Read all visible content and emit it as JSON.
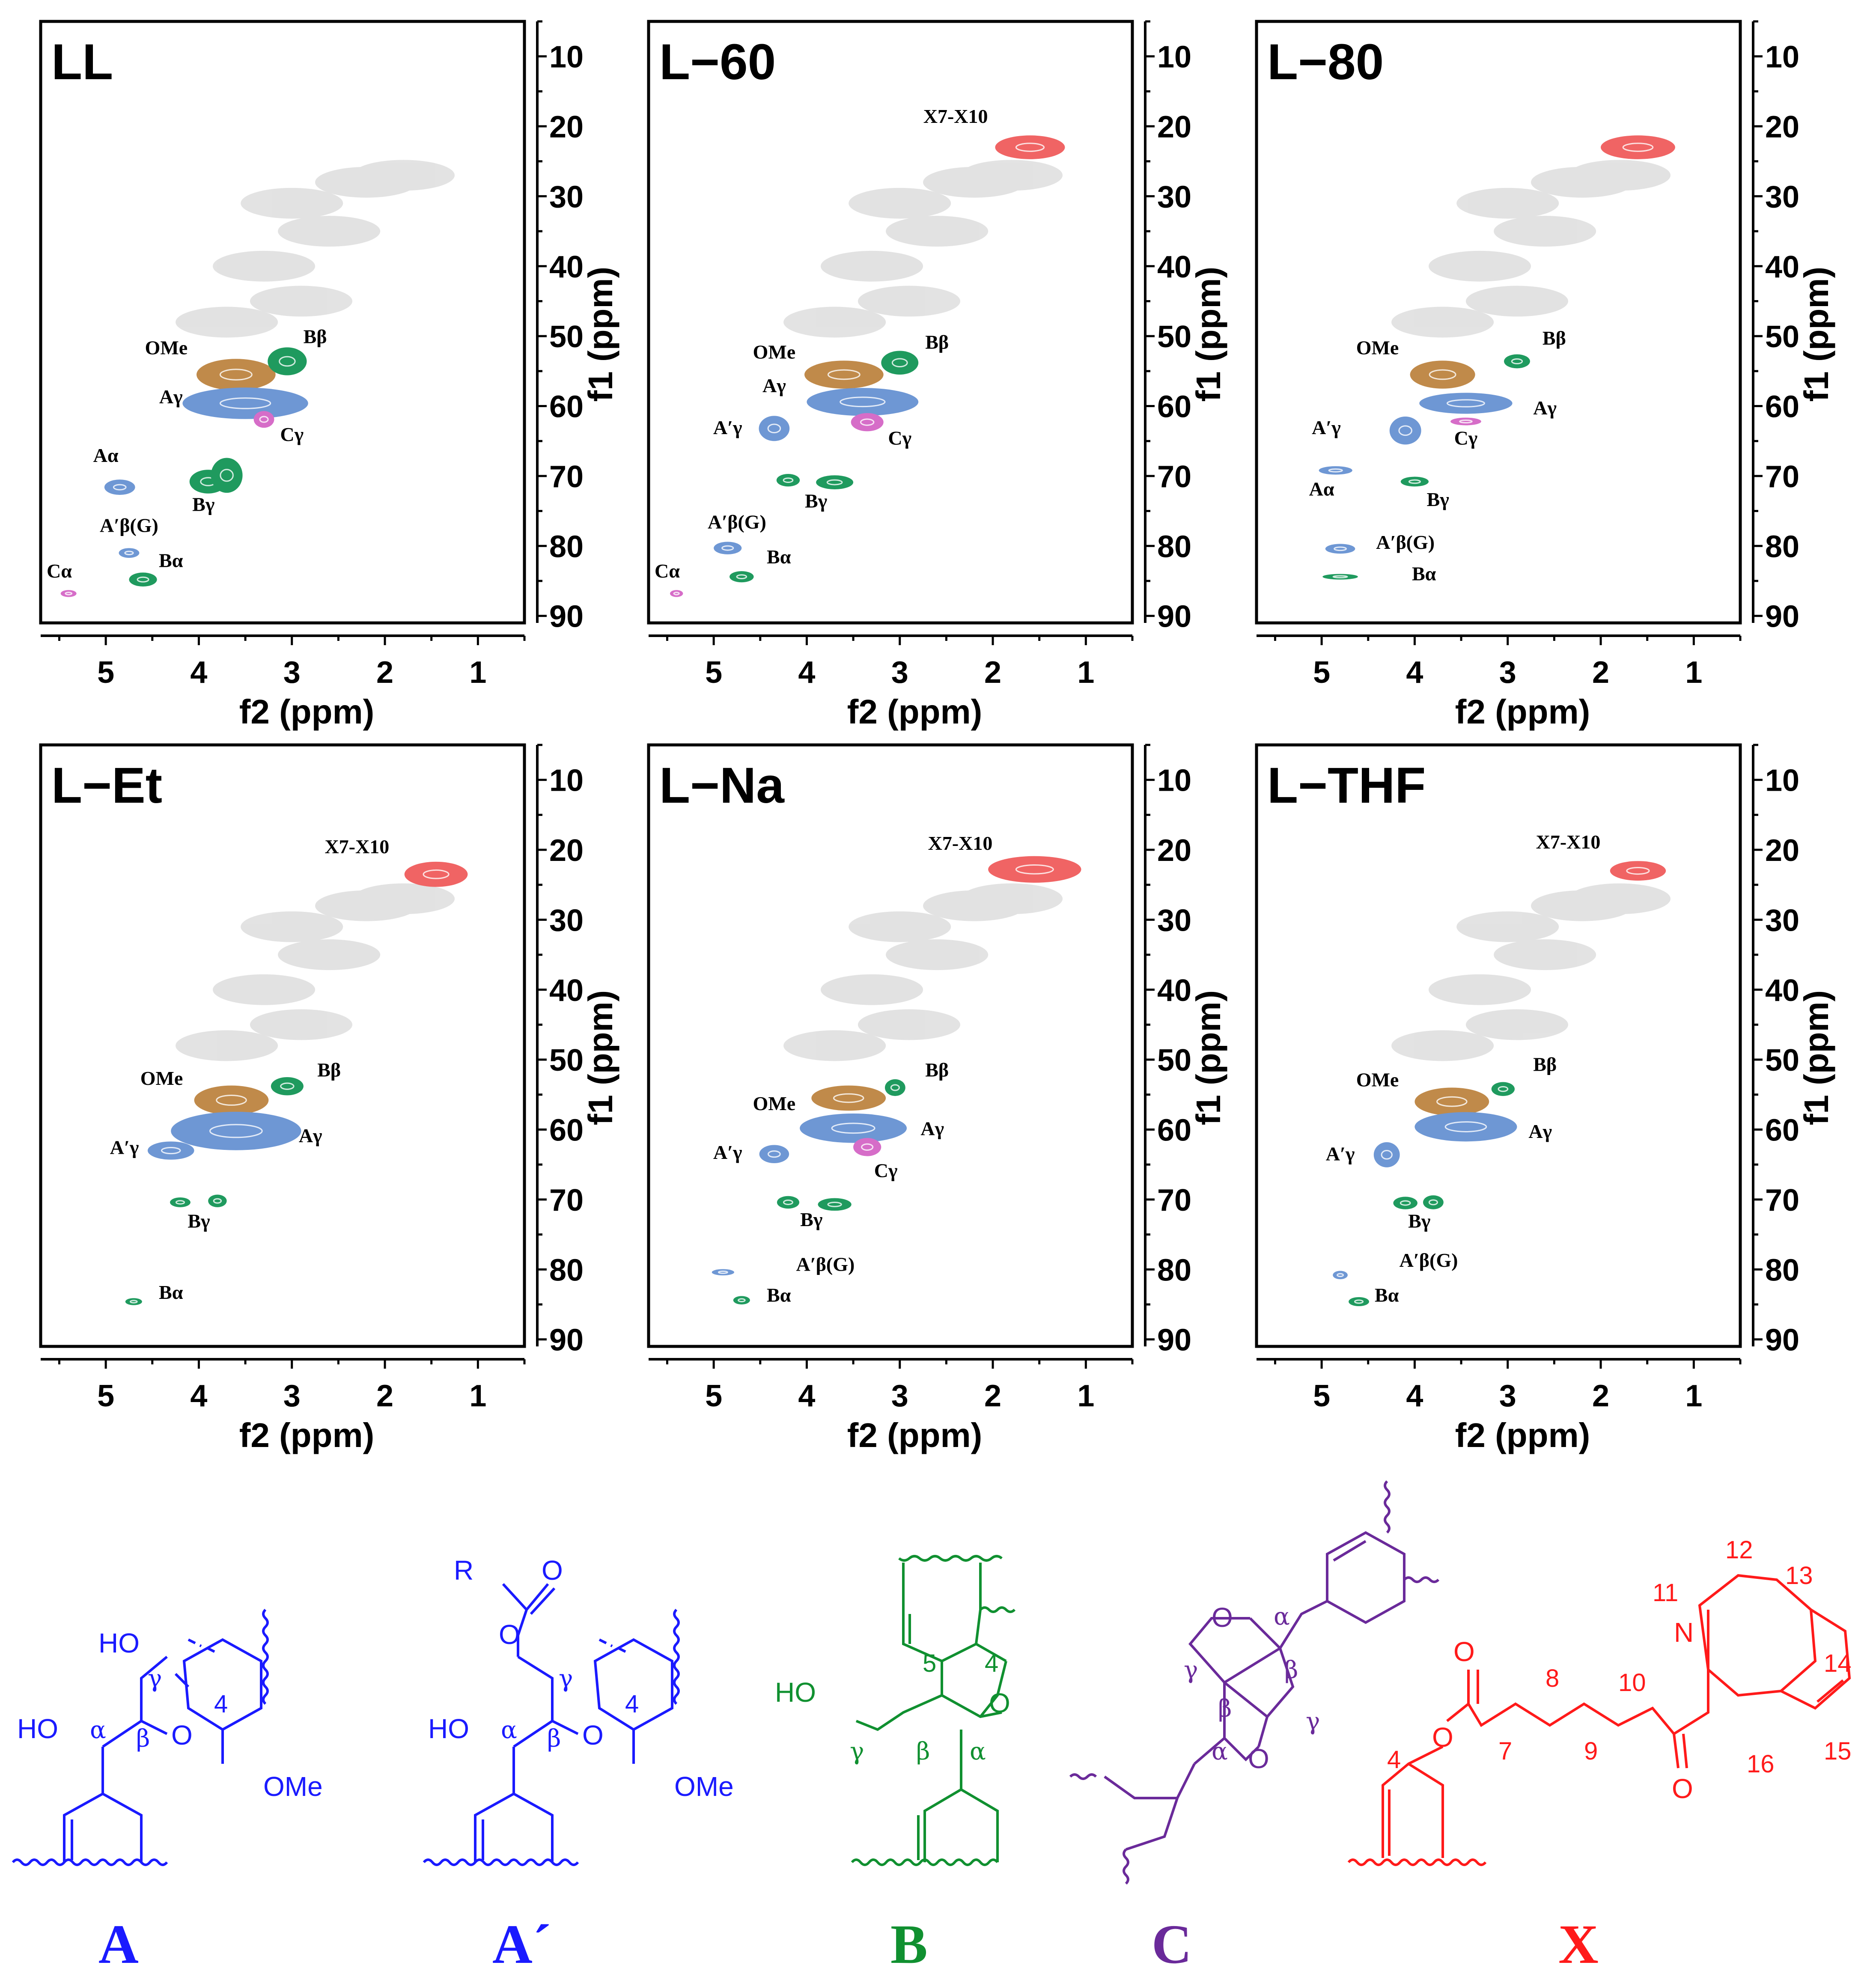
{
  "chart_data": {
    "type": "scatter",
    "description": "2D HSQC NMR spectra (side-chain region) of lignin samples",
    "x_axis": {
      "label": "f2 (ppm)",
      "ticks": [
        5,
        4,
        3,
        2,
        1
      ],
      "range": [
        5.7,
        0.5
      ]
    },
    "y_axis": {
      "label": "f1 (ppm)",
      "ticks": [
        10,
        20,
        30,
        40,
        50,
        60,
        70,
        80,
        90
      ],
      "range": [
        5,
        91
      ]
    },
    "panels": [
      {
        "title": "LL",
        "cross_peaks": [
          {
            "label": "OMe",
            "x": 3.6,
            "y": 55.5,
            "dx": 0.85,
            "dy": 4.5,
            "color": "#c08a4a"
          },
          {
            "label": "Bβ",
            "x": 3.05,
            "y": 53.6,
            "dx": 0.42,
            "dy": 4.0,
            "color": "#1f9a5e"
          },
          {
            "label": "Aγ",
            "x": 3.5,
            "y": 59.6,
            "dx": 1.35,
            "dy": 4.5,
            "color": "#6e97d4"
          },
          {
            "label": "Cγ",
            "x": 3.3,
            "y": 61.9,
            "dx": 0.22,
            "dy": 2.4,
            "color": "#d66dc8"
          },
          {
            "label": "Aα",
            "x": 4.85,
            "y": 71.6,
            "dx": 0.33,
            "dy": 2.2,
            "color": "#6e97d4"
          },
          {
            "label": "Bγ",
            "x": 3.9,
            "y": 70.8,
            "dx": 0.4,
            "dy": 3.4,
            "color": "#1f9a5e"
          },
          {
            "label": "Bγ",
            "x": 3.7,
            "y": 69.9,
            "dx": 0.34,
            "dy": 5.0,
            "color": "#1f9a5e"
          },
          {
            "label": "A′β(G)",
            "x": 4.75,
            "y": 81.0,
            "dx": 0.22,
            "dy": 1.4,
            "color": "#6e97d4"
          },
          {
            "label": "Bα",
            "x": 4.6,
            "y": 84.8,
            "dx": 0.3,
            "dy": 2.0,
            "color": "#1f9a5e"
          },
          {
            "label": "Cα",
            "x": 5.4,
            "y": 86.8,
            "dx": 0.17,
            "dy": 1.0,
            "color": "#d66dc8"
          }
        ],
        "labels": [
          {
            "text": "OMe",
            "x": 4.35,
            "y": 52.6
          },
          {
            "text": "Bβ",
            "x": 2.75,
            "y": 51.0
          },
          {
            "text": "Aγ",
            "x": 4.3,
            "y": 59.6
          },
          {
            "text": "Cγ",
            "x": 3.0,
            "y": 65.0
          },
          {
            "text": "Aα",
            "x": 5.0,
            "y": 68.0
          },
          {
            "text": "Bγ",
            "x": 3.95,
            "y": 75.0
          },
          {
            "text": "A′β(G)",
            "x": 4.75,
            "y": 78.0
          },
          {
            "text": "Bα",
            "x": 4.3,
            "y": 83.0
          },
          {
            "text": "Cα",
            "x": 5.5,
            "y": 84.5
          }
        ]
      },
      {
        "title": "L−60",
        "cross_peaks": [
          {
            "label": "X7-X10",
            "x": 1.6,
            "y": 23.0,
            "dx": 0.75,
            "dy": 3.4,
            "color": "#f06464"
          },
          {
            "label": "OMe",
            "x": 3.6,
            "y": 55.5,
            "dx": 0.85,
            "dy": 4.0,
            "color": "#c08a4a"
          },
          {
            "label": "Bβ",
            "x": 3.0,
            "y": 53.8,
            "dx": 0.4,
            "dy": 3.4,
            "color": "#1f9a5e"
          },
          {
            "label": "Aγ",
            "x": 3.4,
            "y": 59.4,
            "dx": 1.2,
            "dy": 4.0,
            "color": "#6e97d4"
          },
          {
            "label": "Cγ",
            "x": 3.35,
            "y": 62.3,
            "dx": 0.35,
            "dy": 2.6,
            "color": "#d66dc8"
          },
          {
            "label": "A′γ",
            "x": 4.35,
            "y": 63.2,
            "dx": 0.33,
            "dy": 3.6,
            "color": "#6e97d4"
          },
          {
            "label": "Bγ",
            "x": 4.2,
            "y": 70.6,
            "dx": 0.25,
            "dy": 1.8,
            "color": "#1f9a5e"
          },
          {
            "label": "Bγ",
            "x": 3.7,
            "y": 70.9,
            "dx": 0.4,
            "dy": 2.0,
            "color": "#1f9a5e"
          },
          {
            "label": "A′β(G)",
            "x": 4.85,
            "y": 80.3,
            "dx": 0.3,
            "dy": 1.8,
            "color": "#6e97d4"
          },
          {
            "label": "Bα",
            "x": 4.7,
            "y": 84.4,
            "dx": 0.26,
            "dy": 1.6,
            "color": "#1f9a5e"
          },
          {
            "label": "Cα",
            "x": 5.4,
            "y": 86.8,
            "dx": 0.14,
            "dy": 1.0,
            "color": "#d66dc8"
          }
        ],
        "labels": [
          {
            "text": "X7-X10",
            "x": 2.4,
            "y": 19.5
          },
          {
            "text": "OMe",
            "x": 4.35,
            "y": 53.2
          },
          {
            "text": "Bβ",
            "x": 2.6,
            "y": 51.8
          },
          {
            "text": "Aγ",
            "x": 4.35,
            "y": 58.0
          },
          {
            "text": "A′γ",
            "x": 4.85,
            "y": 64.0
          },
          {
            "text": "Cγ",
            "x": 3.0,
            "y": 65.5
          },
          {
            "text": "Bγ",
            "x": 3.9,
            "y": 74.5
          },
          {
            "text": "A′β(G)",
            "x": 4.75,
            "y": 77.5
          },
          {
            "text": "Bα",
            "x": 4.3,
            "y": 82.5
          },
          {
            "text": "Cα",
            "x": 5.5,
            "y": 84.5
          }
        ]
      },
      {
        "title": "L−80",
        "cross_peaks": [
          {
            "label": "X7-X10",
            "x": 1.6,
            "y": 23.0,
            "dx": 0.8,
            "dy": 3.4,
            "color": "#f06464"
          },
          {
            "label": "OMe",
            "x": 3.7,
            "y": 55.5,
            "dx": 0.7,
            "dy": 4.0,
            "color": "#c08a4a"
          },
          {
            "label": "Bβ",
            "x": 2.9,
            "y": 53.6,
            "dx": 0.28,
            "dy": 2.0,
            "color": "#1f9a5e"
          },
          {
            "label": "Aγ",
            "x": 3.45,
            "y": 59.6,
            "dx": 1.0,
            "dy": 3.0,
            "color": "#6e97d4"
          },
          {
            "label": "Cγ",
            "x": 3.45,
            "y": 62.2,
            "dx": 0.33,
            "dy": 1.1,
            "color": "#d66dc8"
          },
          {
            "label": "A′γ",
            "x": 4.1,
            "y": 63.5,
            "dx": 0.34,
            "dy": 4.0,
            "color": "#6e97d4"
          },
          {
            "label": "Aα",
            "x": 4.85,
            "y": 69.2,
            "dx": 0.36,
            "dy": 1.2,
            "color": "#6e97d4"
          },
          {
            "label": "Bγ",
            "x": 4.0,
            "y": 70.8,
            "dx": 0.3,
            "dy": 1.4,
            "color": "#1f9a5e"
          },
          {
            "label": "A′β(G)",
            "x": 4.8,
            "y": 80.4,
            "dx": 0.32,
            "dy": 1.4,
            "color": "#6e97d4"
          },
          {
            "label": "Bα",
            "x": 4.8,
            "y": 84.4,
            "dx": 0.38,
            "dy": 0.8,
            "color": "#1f9a5e"
          }
        ],
        "labels": [
          {
            "text": "OMe",
            "x": 4.4,
            "y": 52.6
          },
          {
            "text": "Bβ",
            "x": 2.5,
            "y": 51.2
          },
          {
            "text": "Aγ",
            "x": 2.6,
            "y": 61.2
          },
          {
            "text": "A′γ",
            "x": 4.95,
            "y": 64.0
          },
          {
            "text": "Cγ",
            "x": 3.45,
            "y": 65.5
          },
          {
            "text": "Aα",
            "x": 5.0,
            "y": 72.8
          },
          {
            "text": "Bγ",
            "x": 3.75,
            "y": 74.3
          },
          {
            "text": "A′β(G)",
            "x": 4.1,
            "y": 80.4
          },
          {
            "text": "Bα",
            "x": 3.9,
            "y": 84.9
          }
        ]
      },
      {
        "title": "L−Et",
        "cross_peaks": [
          {
            "label": "X7-X10",
            "x": 1.45,
            "y": 23.5,
            "dx": 0.68,
            "dy": 3.6,
            "color": "#f06464"
          },
          {
            "label": "OMe",
            "x": 3.65,
            "y": 55.8,
            "dx": 0.8,
            "dy": 4.2,
            "color": "#c08a4a"
          },
          {
            "label": "Bβ",
            "x": 3.05,
            "y": 53.8,
            "dx": 0.35,
            "dy": 2.6,
            "color": "#1f9a5e"
          },
          {
            "label": "Aγ",
            "x": 3.6,
            "y": 60.2,
            "dx": 1.4,
            "dy": 5.5,
            "color": "#6e97d4"
          },
          {
            "label": "A′γ",
            "x": 4.3,
            "y": 63.0,
            "dx": 0.5,
            "dy": 2.6,
            "color": "#6e97d4"
          },
          {
            "label": "Bγ",
            "x": 4.2,
            "y": 70.4,
            "dx": 0.22,
            "dy": 1.4,
            "color": "#1f9a5e"
          },
          {
            "label": "Bγ",
            "x": 3.8,
            "y": 70.2,
            "dx": 0.2,
            "dy": 1.8,
            "color": "#1f9a5e"
          },
          {
            "label": "Bα",
            "x": 4.7,
            "y": 84.6,
            "dx": 0.18,
            "dy": 1.0,
            "color": "#1f9a5e"
          }
        ],
        "labels": [
          {
            "text": "X7-X10",
            "x": 2.3,
            "y": 20.5
          },
          {
            "text": "OMe",
            "x": 4.4,
            "y": 53.6
          },
          {
            "text": "Bβ",
            "x": 2.6,
            "y": 52.4
          },
          {
            "text": "Aγ",
            "x": 2.8,
            "y": 61.8
          },
          {
            "text": "A′γ",
            "x": 4.8,
            "y": 63.5
          },
          {
            "text": "Bγ",
            "x": 4.0,
            "y": 74.0
          },
          {
            "text": "Bα",
            "x": 4.3,
            "y": 84.2
          }
        ]
      },
      {
        "title": "L−Na",
        "cross_peaks": [
          {
            "label": "X7-X10",
            "x": 1.55,
            "y": 22.8,
            "dx": 1.0,
            "dy": 3.8,
            "color": "#f06464"
          },
          {
            "label": "OMe",
            "x": 3.55,
            "y": 55.5,
            "dx": 0.8,
            "dy": 3.6,
            "color": "#c08a4a"
          },
          {
            "label": "Bβ",
            "x": 3.05,
            "y": 54.0,
            "dx": 0.22,
            "dy": 2.4,
            "color": "#1f9a5e"
          },
          {
            "label": "Aγ",
            "x": 3.5,
            "y": 59.8,
            "dx": 1.15,
            "dy": 4.2,
            "color": "#6e97d4"
          },
          {
            "label": "Cγ",
            "x": 3.35,
            "y": 62.5,
            "dx": 0.3,
            "dy": 2.6,
            "color": "#d66dc8"
          },
          {
            "label": "A′γ",
            "x": 4.35,
            "y": 63.5,
            "dx": 0.32,
            "dy": 2.6,
            "color": "#6e97d4"
          },
          {
            "label": "Bγ",
            "x": 4.2,
            "y": 70.4,
            "dx": 0.24,
            "dy": 1.8,
            "color": "#1f9a5e"
          },
          {
            "label": "Bγ",
            "x": 3.7,
            "y": 70.7,
            "dx": 0.36,
            "dy": 1.8,
            "color": "#1f9a5e"
          },
          {
            "label": "A′β(G)",
            "x": 4.9,
            "y": 80.4,
            "dx": 0.24,
            "dy": 0.9,
            "color": "#6e97d4"
          },
          {
            "label": "Bα",
            "x": 4.7,
            "y": 84.4,
            "dx": 0.18,
            "dy": 1.2,
            "color": "#1f9a5e"
          }
        ],
        "labels": [
          {
            "text": "X7-X10",
            "x": 2.35,
            "y": 20.0
          },
          {
            "text": "OMe",
            "x": 4.35,
            "y": 57.2
          },
          {
            "text": "Bβ",
            "x": 2.6,
            "y": 52.4
          },
          {
            "text": "Aγ",
            "x": 2.65,
            "y": 60.8
          },
          {
            "text": "A′γ",
            "x": 4.85,
            "y": 64.2
          },
          {
            "text": "Cγ",
            "x": 3.15,
            "y": 66.8
          },
          {
            "text": "Bγ",
            "x": 3.95,
            "y": 73.8
          },
          {
            "text": "A′β(G)",
            "x": 3.8,
            "y": 80.2
          },
          {
            "text": "Bα",
            "x": 4.3,
            "y": 84.6
          }
        ]
      },
      {
        "title": "L−THF",
        "cross_peaks": [
          {
            "label": "X7-X10",
            "x": 1.6,
            "y": 23.0,
            "dx": 0.6,
            "dy": 2.8,
            "color": "#f06464"
          },
          {
            "label": "OMe",
            "x": 3.6,
            "y": 56.0,
            "dx": 0.8,
            "dy": 4.0,
            "color": "#c08a4a"
          },
          {
            "label": "Bβ",
            "x": 3.05,
            "y": 54.2,
            "dx": 0.25,
            "dy": 2.0,
            "color": "#1f9a5e"
          },
          {
            "label": "Aγ",
            "x": 3.45,
            "y": 59.6,
            "dx": 1.1,
            "dy": 4.2,
            "color": "#6e97d4"
          },
          {
            "label": "A′γ",
            "x": 4.3,
            "y": 63.6,
            "dx": 0.28,
            "dy": 3.6,
            "color": "#6e97d4"
          },
          {
            "label": "Bγ",
            "x": 4.1,
            "y": 70.5,
            "dx": 0.26,
            "dy": 1.8,
            "color": "#1f9a5e"
          },
          {
            "label": "Bγ",
            "x": 3.8,
            "y": 70.4,
            "dx": 0.22,
            "dy": 2.0,
            "color": "#1f9a5e"
          },
          {
            "label": "A′β(G)",
            "x": 4.8,
            "y": 80.8,
            "dx": 0.16,
            "dy": 1.2,
            "color": "#6e97d4"
          },
          {
            "label": "Bα",
            "x": 4.6,
            "y": 84.6,
            "dx": 0.22,
            "dy": 1.3,
            "color": "#1f9a5e"
          }
        ],
        "labels": [
          {
            "text": "X7-X10",
            "x": 2.35,
            "y": 19.8
          },
          {
            "text": "OMe",
            "x": 4.4,
            "y": 53.8
          },
          {
            "text": "Bβ",
            "x": 2.6,
            "y": 51.6
          },
          {
            "text": "Aγ",
            "x": 2.65,
            "y": 61.2
          },
          {
            "text": "A′γ",
            "x": 4.8,
            "y": 64.4
          },
          {
            "text": "Bγ",
            "x": 3.95,
            "y": 74.0
          },
          {
            "text": "A′β(G)",
            "x": 3.85,
            "y": 79.6
          },
          {
            "text": "Bα",
            "x": 4.3,
            "y": 84.6
          }
        ]
      }
    ]
  },
  "structures": {
    "A": {
      "label": "A",
      "color": "#1a1aff",
      "atoms": {
        "ho_gamma": "HO",
        "ho_alpha": "HO",
        "o_ether": "O",
        "ome": "OMe"
      },
      "greek": {
        "gamma": "γ",
        "alpha": "α",
        "beta": "β"
      },
      "nums": {
        "c4": "4"
      }
    },
    "A_prime": {
      "label": "A´",
      "color": "#1a1aff",
      "atoms": {
        "r": "R",
        "o_carbonyl": "O",
        "o_ester": "O",
        "ho_alpha": "HO",
        "o_ether": "O",
        "ome": "OMe"
      },
      "greek": {
        "gamma": "γ",
        "alpha": "α",
        "beta": "β"
      },
      "nums": {
        "c4": "4"
      }
    },
    "B": {
      "label": "B",
      "color": "#109030",
      "atoms": {
        "ho": "HO",
        "o_ring": "O"
      },
      "greek": {
        "gamma": "γ",
        "beta": "β",
        "alpha": "α"
      },
      "nums": {
        "c5": "5",
        "c4": "4"
      }
    },
    "C": {
      "label": "C",
      "color": "#6a2a9a",
      "atoms": {
        "o_top": "O",
        "o_bottom": "O"
      },
      "greek": {
        "alpha_top": "α",
        "gamma_top": "γ",
        "beta_left": "β",
        "beta_right": "β",
        "gamma_right": "γ",
        "alpha_bottom": "α"
      }
    },
    "X": {
      "label": "X",
      "color": "#ff1a1a",
      "atoms": {
        "n": "N",
        "o_ester_carbonyl": "O",
        "o_ester": "O",
        "o_ketone": "O"
      },
      "nums": {
        "c4": "4",
        "c7": "7",
        "c8": "8",
        "c9": "9",
        "c10": "10",
        "c11": "11",
        "c12": "12",
        "c13": "13",
        "c14": "14",
        "c15": "15",
        "c16": "16"
      }
    }
  }
}
